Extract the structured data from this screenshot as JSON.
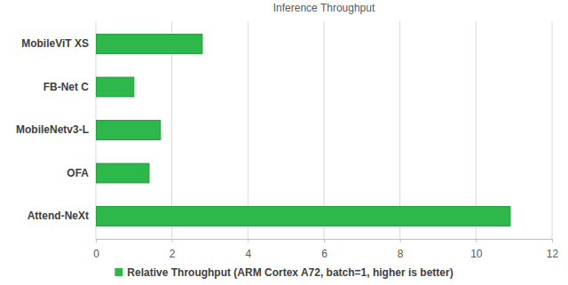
{
  "chart_data": {
    "type": "bar",
    "orientation": "horizontal",
    "title": "Inference Throughput",
    "categories": [
      "MobileViT XS",
      "FB-Net C",
      "MobileNetv3-L",
      "OFA",
      "Attend-NeXt"
    ],
    "series": [
      {
        "name": "Relative Throughput (ARM Cortex A72, batch=1, higher is better)",
        "color": "#2eb84c",
        "values": [
          2.8,
          1.0,
          1.7,
          1.4,
          10.9
        ]
      }
    ],
    "xlim": [
      0,
      12
    ],
    "xticks": [
      0,
      2,
      4,
      6,
      8,
      10,
      12
    ],
    "grid": true,
    "legend": "bottom"
  }
}
